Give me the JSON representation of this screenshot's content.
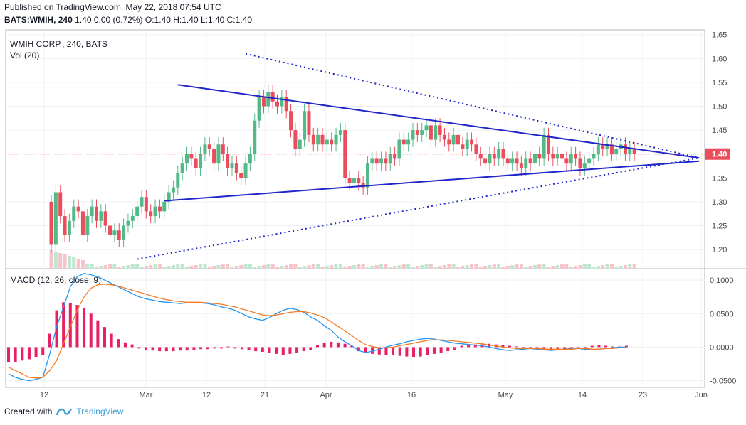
{
  "header": {
    "published": "Published on TradingView.com, May 22, 2018 07:54 UTC",
    "symbol": "BATS:WMIH, 240",
    "change": "1.40 0.00 (0.72%)",
    "ohlc": "O:1.40 H:1.40 L:1.40 C:1.40"
  },
  "footer": {
    "created_with": "Created with",
    "brand": "TradingView"
  },
  "colors": {
    "up": "#53b987",
    "down": "#eb4d5c",
    "trend": "#1f25c9",
    "macd": "#2196f3",
    "signal": "#f57c22",
    "hist": "#e91e63",
    "vol_up": "#bfe6cf",
    "vol_down": "#f7c4c9"
  },
  "chart_data": [
    {
      "type": "candlestick",
      "title": "WMIH CORP., 240, BATS",
      "indicator_label": "Vol (20)",
      "last_price_label": "1.40",
      "ylim": [
        1.16,
        1.66
      ],
      "yticks": [
        "1.65",
        "1.60",
        "1.55",
        "1.50",
        "1.45",
        "1.40",
        "1.35",
        "1.30",
        "1.25",
        "1.20"
      ],
      "xticks": [
        "12",
        "Mar",
        "12",
        "21",
        "Apr",
        "16",
        "May",
        "14",
        "23",
        "Jun"
      ],
      "candles_close": [
        1.21,
        1.32,
        1.27,
        1.23,
        1.26,
        1.29,
        1.28,
        1.23,
        1.27,
        1.29,
        1.26,
        1.28,
        1.25,
        1.23,
        1.24,
        1.22,
        1.25,
        1.26,
        1.27,
        1.29,
        1.31,
        1.28,
        1.27,
        1.29,
        1.28,
        1.3,
        1.32,
        1.33,
        1.36,
        1.38,
        1.4,
        1.39,
        1.37,
        1.4,
        1.42,
        1.41,
        1.38,
        1.42,
        1.4,
        1.37,
        1.38,
        1.36,
        1.35,
        1.38,
        1.4,
        1.47,
        1.52,
        1.5,
        1.53,
        1.51,
        1.5,
        1.52,
        1.49,
        1.45,
        1.41,
        1.43,
        1.49,
        1.44,
        1.42,
        1.44,
        1.42,
        1.43,
        1.42,
        1.44,
        1.45,
        1.35,
        1.34,
        1.35,
        1.34,
        1.33,
        1.38,
        1.39,
        1.38,
        1.39,
        1.38,
        1.4,
        1.39,
        1.43,
        1.42,
        1.43,
        1.45,
        1.44,
        1.45,
        1.46,
        1.43,
        1.46,
        1.44,
        1.43,
        1.42,
        1.44,
        1.42,
        1.41,
        1.43,
        1.42,
        1.4,
        1.39,
        1.38,
        1.4,
        1.39,
        1.41,
        1.39,
        1.38,
        1.39,
        1.38,
        1.37,
        1.39,
        1.38,
        1.4,
        1.39,
        1.44,
        1.4,
        1.39,
        1.4,
        1.39,
        1.38,
        1.4,
        1.39,
        1.37,
        1.38,
        1.39,
        1.4,
        1.42,
        1.41,
        1.42,
        1.4,
        1.41,
        1.42,
        1.4,
        1.41,
        1.4
      ],
      "trendlines": [
        {
          "style": "solid",
          "from": [
            28,
            1.545
          ],
          "to": [
            126,
            1.392
          ]
        },
        {
          "style": "solid",
          "from": [
            25,
            1.302
          ],
          "to": [
            126,
            1.385
          ]
        },
        {
          "style": "dotted",
          "from": [
            43,
            1.61
          ],
          "to": [
            126,
            1.392
          ]
        },
        {
          "style": "dotted",
          "from": [
            19,
            1.18
          ],
          "to": [
            126,
            1.392
          ]
        }
      ]
    },
    {
      "type": "line",
      "title": "MACD (12, 26, close, 9)",
      "ylim": [
        -0.06,
        0.115
      ],
      "yticks": [
        "0.1000",
        "0.0500",
        "0.0000",
        "-0.0500"
      ],
      "series": [
        {
          "name": "MACD",
          "values": [
            -0.04,
            -0.045,
            -0.048,
            -0.05,
            -0.048,
            -0.045,
            -0.01,
            0.03,
            0.06,
            0.09,
            0.105,
            0.11,
            0.108,
            0.105,
            0.1,
            0.095,
            0.09,
            0.085,
            0.08,
            0.075,
            0.072,
            0.07,
            0.068,
            0.067,
            0.066,
            0.065,
            0.066,
            0.067,
            0.066,
            0.065,
            0.063,
            0.06,
            0.058,
            0.055,
            0.05,
            0.045,
            0.042,
            0.04,
            0.044,
            0.05,
            0.055,
            0.058,
            0.056,
            0.052,
            0.045,
            0.04,
            0.032,
            0.025,
            0.015,
            0.008,
            0.002,
            -0.005,
            -0.008,
            -0.006,
            -0.003,
            0,
            0.003,
            0.005,
            0.008,
            0.01,
            0.012,
            0.013,
            0.012,
            0.01,
            0.008,
            0.006,
            0.005,
            0.004,
            0.003,
            0.002,
            0,
            -0.002,
            -0.004,
            -0.005,
            -0.004,
            -0.003,
            -0.002,
            -0.003,
            -0.004,
            -0.005,
            -0.004,
            -0.003,
            -0.002,
            -0.002,
            -0.003,
            -0.004,
            -0.003,
            -0.002,
            -0.001,
            0,
            0
          ]
        },
        {
          "name": "Signal",
          "values": [
            -0.03,
            -0.035,
            -0.04,
            -0.045,
            -0.046,
            -0.045,
            -0.035,
            -0.02,
            0.005,
            0.03,
            0.055,
            0.075,
            0.088,
            0.093,
            0.094,
            0.093,
            0.091,
            0.088,
            0.085,
            0.082,
            0.079,
            0.076,
            0.073,
            0.071,
            0.069,
            0.068,
            0.067,
            0.067,
            0.067,
            0.066,
            0.065,
            0.064,
            0.062,
            0.06,
            0.057,
            0.054,
            0.051,
            0.048,
            0.047,
            0.048,
            0.05,
            0.052,
            0.053,
            0.053,
            0.051,
            0.048,
            0.044,
            0.038,
            0.031,
            0.024,
            0.017,
            0.01,
            0.004,
            0.001,
            -0.001,
            -0.001,
            0,
            0.002,
            0.004,
            0.006,
            0.008,
            0.01,
            0.011,
            0.011,
            0.01,
            0.009,
            0.008,
            0.007,
            0.006,
            0.005,
            0.003,
            0.002,
            0,
            -0.001,
            -0.002,
            -0.002,
            -0.002,
            -0.002,
            -0.003,
            -0.003,
            -0.003,
            -0.003,
            -0.003,
            -0.002,
            -0.002,
            -0.003,
            -0.003,
            -0.002,
            -0.002,
            -0.001,
            -0.001
          ]
        }
      ],
      "histogram": [
        -0.022,
        -0.022,
        -0.02,
        -0.018,
        -0.015,
        -0.012,
        0.02,
        0.055,
        0.067,
        0.066,
        0.063,
        0.058,
        0.05,
        0.04,
        0.03,
        0.02,
        0.012,
        0.007,
        0.004,
        -0.002,
        -0.004,
        -0.005,
        -0.006,
        -0.006,
        -0.006,
        -0.005,
        -0.005,
        -0.004,
        -0.003,
        -0.003,
        -0.002,
        -0.002,
        0.001,
        -0.002,
        -0.003,
        -0.004,
        -0.006,
        -0.007,
        -0.008,
        -0.01,
        -0.012,
        -0.01,
        -0.008,
        -0.006,
        -0.004,
        0.003,
        0.006,
        0.008,
        0.007,
        0.005,
        0.002,
        -0.006,
        -0.008,
        -0.01,
        -0.011,
        -0.012,
        -0.012,
        -0.013,
        -0.014,
        -0.015,
        -0.014,
        -0.012,
        -0.01,
        -0.008,
        -0.006,
        -0.004,
        0.002,
        0.003,
        0.004,
        0.004,
        0.005,
        0.004,
        0.003,
        0.002,
        0.001,
        -0.001,
        -0.002,
        -0.003,
        -0.004,
        -0.004,
        -0.004,
        -0.003,
        -0.002,
        -0.002,
        -0.001,
        0.002,
        0.003,
        0.002,
        0.001,
        0.001,
        0.002
      ]
    }
  ]
}
